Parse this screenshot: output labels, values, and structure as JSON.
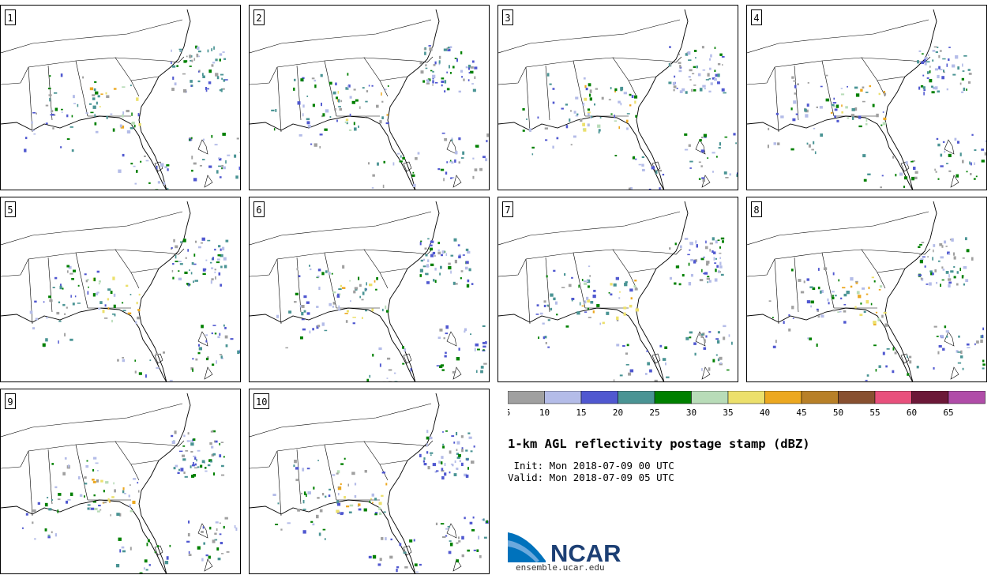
{
  "title": "1-km AGL reflectivity postage stamp (dBZ)",
  "init": " Init: Mon 2018-07-09 00 UTC",
  "valid": "Valid: Mon 2018-07-09 05 UTC",
  "colorbar": {
    "ticks": [
      "5",
      "10",
      "15",
      "20",
      "25",
      "30",
      "35",
      "40",
      "45",
      "50",
      "55",
      "60",
      "65"
    ],
    "colors": [
      "#a0a0a0",
      "#b4bce8",
      "#5058d0",
      "#4a9494",
      "#008000",
      "#b8dcb8",
      "#ece06c",
      "#eca820",
      "#b88028",
      "#885030",
      "#e8507c",
      "#6c1838",
      "#b04ca8"
    ]
  },
  "members": [
    "1",
    "2",
    "3",
    "4",
    "5",
    "6",
    "7",
    "8",
    "9",
    "10"
  ],
  "logo": {
    "text": "NCAR",
    "site": "ensemble.ucar.edu",
    "colors": {
      "blue": "#0072bc",
      "navy": "#1c3f74"
    }
  },
  "map_colors": {
    "borders": "#000000"
  }
}
